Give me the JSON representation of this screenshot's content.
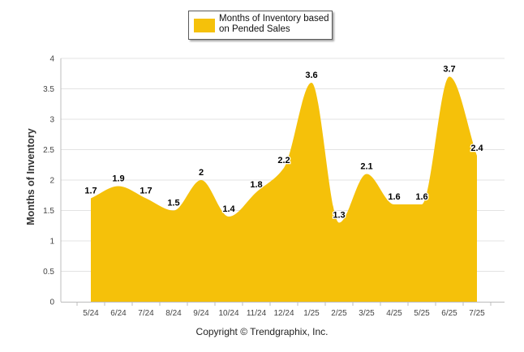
{
  "chart_data": {
    "type": "area",
    "categories": [
      "5/24",
      "6/24",
      "7/24",
      "8/24",
      "9/24",
      "10/24",
      "11/24",
      "12/24",
      "1/25",
      "2/25",
      "3/25",
      "4/25",
      "5/25",
      "6/25",
      "7/25"
    ],
    "series": [
      {
        "name": "Months of Inventory based on Pended Sales",
        "values": [
          1.7,
          1.9,
          1.7,
          1.5,
          2.0,
          1.4,
          1.8,
          2.2,
          3.6,
          1.3,
          2.1,
          1.6,
          1.6,
          3.7,
          2.4
        ],
        "labels": [
          "1.7",
          "1.9",
          "1.7",
          "1.5",
          "2",
          "1.4",
          "1.8",
          "2.2",
          "3.6",
          "1.3",
          "2.1",
          "1.6",
          "1.6",
          "3.7",
          "2.4"
        ],
        "color": "#F5C10A"
      }
    ],
    "ylabel": "Months of Inventory",
    "ylim": [
      0,
      4
    ],
    "yticks": [
      0,
      0.5,
      1,
      1.5,
      2,
      2.5,
      3,
      3.5,
      4
    ],
    "ytick_labels": [
      "0",
      "0.5",
      "1",
      "1.5",
      "2",
      "2.5",
      "3",
      "3.5",
      "4"
    ],
    "grid": true,
    "legend_position": "top-center"
  },
  "legend": {
    "label_line1": "Months of Inventory based",
    "label_line2": "on Pended Sales"
  },
  "footer": {
    "copyright": "Copyright © Trendgraphix, Inc."
  },
  "colors": {
    "fill": "#F5C10A",
    "grid": "#e3e3e3",
    "axis": "#bcbcbc"
  }
}
